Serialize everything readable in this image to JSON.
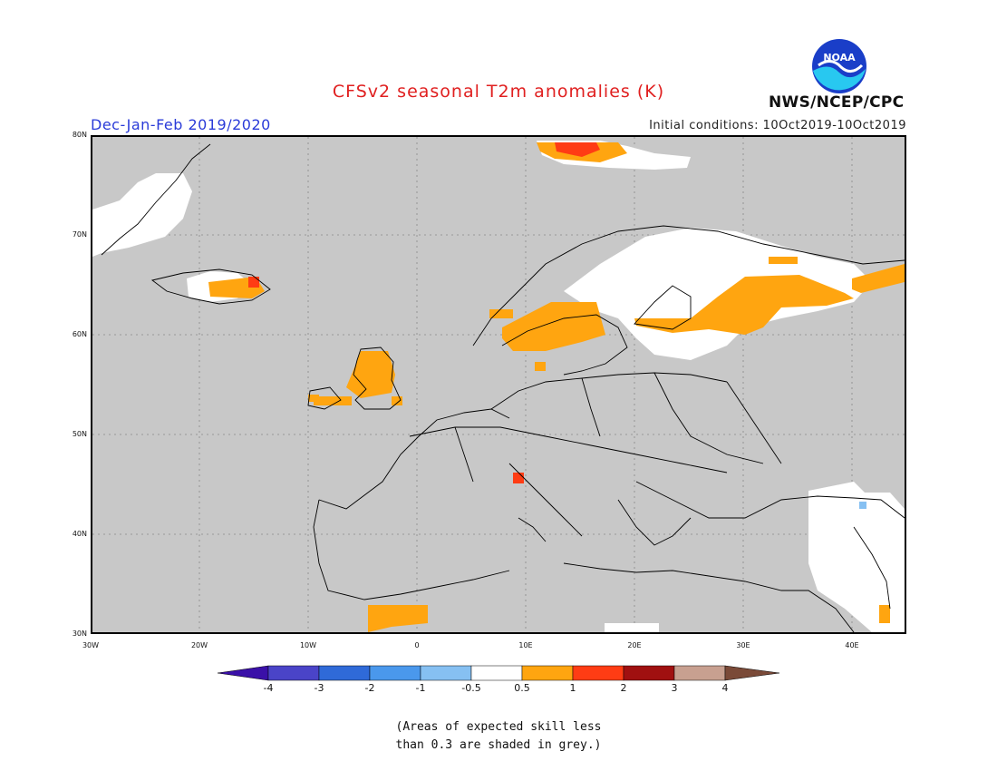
{
  "header": {
    "title": "CFSv2 seasonal T2m anomalies (K)",
    "season": "Dec-Jan-Feb 2019/2020",
    "initial_conditions": "Initial conditions: 10Oct2019-10Oct2019",
    "agency": "NWS/NCEP/CPC",
    "logo_text": "NOAA"
  },
  "axes": {
    "lat_labels": [
      "80N",
      "70N",
      "60N",
      "50N",
      "40N",
      "30N"
    ],
    "lon_labels": [
      "30W",
      "20W",
      "10W",
      "0",
      "10E",
      "20E",
      "30E",
      "40E"
    ]
  },
  "colorbar": {
    "labels": [
      "-4",
      "-3",
      "-2",
      "-1",
      "-0.5",
      "0.5",
      "1",
      "2",
      "3",
      "4"
    ],
    "colors": [
      "#3a10a8",
      "#4a44c8",
      "#2f6ad8",
      "#4a98ec",
      "#86c0f2",
      "#ffffff",
      "#ffa510",
      "#ff3c14",
      "#a01010",
      "#c8a090",
      "#7a4a38"
    ]
  },
  "footnote": {
    "line1": "(Areas of expected skill less",
    "line2": "than 0.3 are shaded in grey.)"
  },
  "map": {
    "background": "#c8c8c8",
    "anomaly_classes": [
      "0.5 to 1",
      "1 to 2",
      "-1 to -0.5",
      "-0.5 to 0.5"
    ]
  }
}
